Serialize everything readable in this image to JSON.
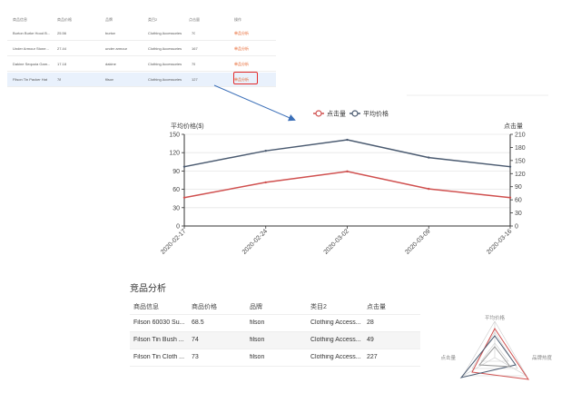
{
  "top_table": {
    "headers": [
      "商品信息",
      "商品价格",
      "品牌",
      "类目2",
      "点击量",
      "操作"
    ],
    "rows": [
      {
        "name": "Burton Burke Hood B...",
        "price": "25.56",
        "brand": "burton",
        "category": "Clothing Accessories",
        "clicks": "70",
        "action": "单品分析"
      },
      {
        "name": "Under Armour Stone...",
        "price": "27.44",
        "brand": "under armour",
        "category": "Clothing Accessories",
        "clicks": "167",
        "action": "单品分析"
      },
      {
        "name": "Dakine Sequoia Gam...",
        "price": "17.18",
        "brand": "dakine",
        "category": "Clothing Accessories",
        "clicks": "75",
        "action": "单品分析"
      },
      {
        "name": "Filson Tin Packer Hat",
        "price": "78",
        "brand": "filson",
        "category": "Clothing Accessories",
        "clicks": "127",
        "action": "单品分析"
      }
    ]
  },
  "chart_data": {
    "type": "line",
    "categories": [
      "2020-02-17",
      "2020-02-24",
      "2020-03-02",
      "2020-03-09",
      "2020-03-16"
    ],
    "series": [
      {
        "name": "点击量",
        "axis": "right",
        "color": "#d0504f",
        "values": [
          65,
          100,
          125,
          85,
          65
        ]
      },
      {
        "name": "平均价格",
        "axis": "left",
        "color": "#4a5a70",
        "values": [
          97,
          123,
          141,
          112,
          97
        ]
      }
    ],
    "ylabel_left": "平均价格($)",
    "ylabel_right": "点击量",
    "yticks_left": [
      0,
      30,
      60,
      90,
      120,
      150
    ],
    "yticks_right": [
      0,
      30,
      60,
      90,
      120,
      150,
      180,
      210
    ],
    "ylim_left": [
      0,
      150
    ],
    "ylim_right": [
      0,
      210
    ],
    "legend": "top-center"
  },
  "section": {
    "title": "竞品分析"
  },
  "bottom_table": {
    "headers": [
      "商品信息",
      "商品价格",
      "品牌",
      "类目2",
      "点击量"
    ],
    "rows": [
      {
        "name": "Filson 60030 Su...",
        "price": "68.5",
        "brand": "filson",
        "category": "Clothing Access...",
        "clicks": "28"
      },
      {
        "name": "Filson Tin Bush ...",
        "price": "74",
        "brand": "filson",
        "category": "Clothing Access...",
        "clicks": "49"
      },
      {
        "name": "Filson Tin Cloth ...",
        "price": "73",
        "brand": "filson",
        "category": "Clothing Access...",
        "clicks": "227"
      }
    ]
  },
  "radar": {
    "indicators": [
      "平均价格",
      "点击量",
      "品牌热度"
    ],
    "series_colors": [
      "#d0504f",
      "#4a5a70",
      "#999999"
    ]
  }
}
